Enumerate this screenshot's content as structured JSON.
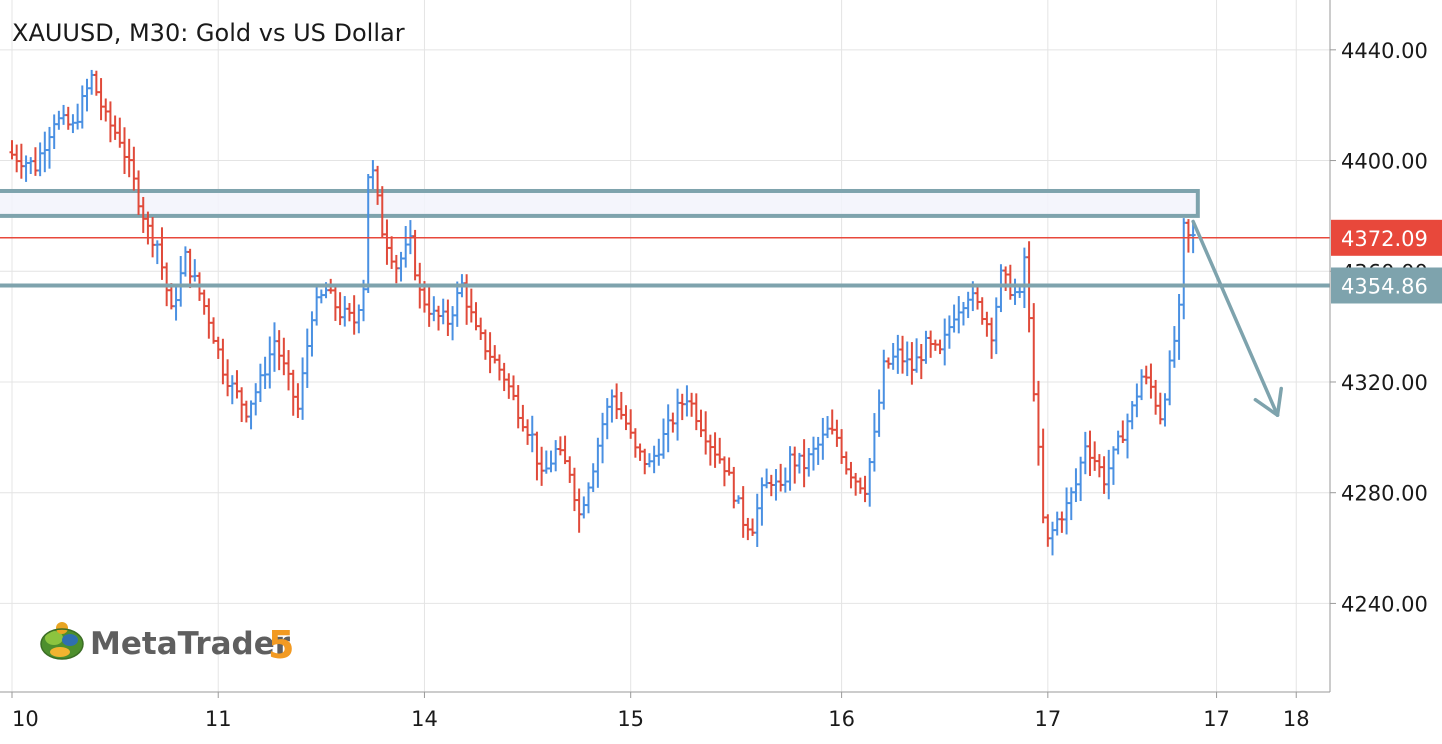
{
  "chart_data": {
    "type": "ohlc",
    "title": "XAUUSD, M30: Gold vs US Dollar",
    "symbol": "XAUUSD",
    "timeframe": "M30",
    "xlabel": "",
    "ylabel": "",
    "grid": true,
    "ylim": [
      4208,
      4458
    ],
    "y_ticks": [
      4240,
      4280,
      4320,
      4360,
      4400,
      4440
    ],
    "y_tick_labels": [
      "4240.00",
      "4280.00",
      "4320.00",
      "4360.00",
      "4400.00",
      "4440.00"
    ],
    "x_ticks": [
      {
        "label": "10",
        "bar": 0
      },
      {
        "label": "11",
        "bar": 44
      },
      {
        "label": "14",
        "bar": 88
      },
      {
        "label": "15",
        "bar": 132
      },
      {
        "label": "16",
        "bar": 177
      },
      {
        "label": "17",
        "bar": 221
      },
      {
        "label": "17",
        "bar": 257
      },
      {
        "label": "18",
        "bar": 274
      }
    ],
    "bar_count": 275,
    "last_bar": 252,
    "colors": {
      "up": "#4a90e2",
      "down": "#e04a3a",
      "zone": "#7ea3ad",
      "arrow": "#7ea3ad",
      "current": "#e8483b"
    },
    "path": [
      [
        0,
        4403
      ],
      [
        6,
        4398
      ],
      [
        10,
        4415
      ],
      [
        14,
        4412
      ],
      [
        18,
        4430
      ],
      [
        21,
        4415
      ],
      [
        24,
        4408
      ],
      [
        27,
        4392
      ],
      [
        30,
        4375
      ],
      [
        32,
        4370
      ],
      [
        35,
        4345
      ],
      [
        38,
        4365
      ],
      [
        41,
        4352
      ],
      [
        43,
        4343
      ],
      [
        46,
        4325
      ],
      [
        48,
        4318
      ],
      [
        51,
        4310
      ],
      [
        54,
        4320
      ],
      [
        57,
        4335
      ],
      [
        60,
        4320
      ],
      [
        62,
        4310
      ],
      [
        65,
        4345
      ],
      [
        68,
        4353
      ],
      [
        71,
        4345
      ],
      [
        74,
        4342
      ],
      [
        76,
        4355
      ],
      [
        77,
        4395
      ],
      [
        78,
        4395
      ],
      [
        80,
        4375
      ],
      [
        83,
        4362
      ],
      [
        86,
        4370
      ],
      [
        88,
        4352
      ],
      [
        91,
        4344
      ],
      [
        94,
        4342
      ],
      [
        97,
        4355
      ],
      [
        100,
        4338
      ],
      [
        103,
        4330
      ],
      [
        106,
        4322
      ],
      [
        109,
        4310
      ],
      [
        112,
        4300
      ],
      [
        114,
        4285
      ],
      [
        117,
        4295
      ],
      [
        120,
        4288
      ],
      [
        122,
        4272
      ],
      [
        125,
        4290
      ],
      [
        127,
        4305
      ],
      [
        129,
        4315
      ],
      [
        132,
        4305
      ],
      [
        134,
        4295
      ],
      [
        137,
        4290
      ],
      [
        140,
        4300
      ],
      [
        143,
        4310
      ],
      [
        145,
        4315
      ],
      [
        148,
        4305
      ],
      [
        150,
        4298
      ],
      [
        153,
        4290
      ],
      [
        155,
        4280
      ],
      [
        157,
        4270
      ],
      [
        159,
        4268
      ],
      [
        161,
        4280
      ],
      [
        163,
        4285
      ],
      [
        165,
        4280
      ],
      [
        167,
        4292
      ],
      [
        170,
        4290
      ],
      [
        173,
        4297
      ],
      [
        175,
        4302
      ],
      [
        177,
        4300
      ],
      [
        179,
        4290
      ],
      [
        181,
        4285
      ],
      [
        183,
        4282
      ],
      [
        185,
        4300
      ],
      [
        187,
        4325
      ],
      [
        190,
        4330
      ],
      [
        193,
        4325
      ],
      [
        196,
        4333
      ],
      [
        199,
        4330
      ],
      [
        202,
        4345
      ],
      [
        205,
        4352
      ],
      [
        208,
        4345
      ],
      [
        210,
        4338
      ],
      [
        212,
        4358
      ],
      [
        214,
        4354
      ],
      [
        216,
        4350
      ],
      [
        217,
        4365
      ],
      [
        219,
        4318
      ],
      [
        221,
        4270
      ],
      [
        222,
        4262
      ],
      [
        224,
        4270
      ],
      [
        226,
        4275
      ],
      [
        228,
        4283
      ],
      [
        230,
        4298
      ],
      [
        232,
        4292
      ],
      [
        234,
        4285
      ],
      [
        236,
        4293
      ],
      [
        238,
        4302
      ],
      [
        240,
        4310
      ],
      [
        242,
        4322
      ],
      [
        244,
        4318
      ],
      [
        246,
        4308
      ],
      [
        248,
        4325
      ],
      [
        250,
        4345
      ],
      [
        251,
        4375
      ],
      [
        252,
        4372
      ]
    ],
    "resistance_zone": {
      "top": 4389,
      "bottom": 4380,
      "to_bar": 253
    },
    "support_line": 4354.86,
    "current_price": 4372.09,
    "price_labels": {
      "current": "4372.09",
      "support": "4354.86"
    },
    "projection_arrow": {
      "from": [
        252,
        4378
      ],
      "to": [
        270,
        4308
      ]
    }
  },
  "branding": {
    "logo_word": "MetaTrader",
    "logo_number": "5"
  }
}
